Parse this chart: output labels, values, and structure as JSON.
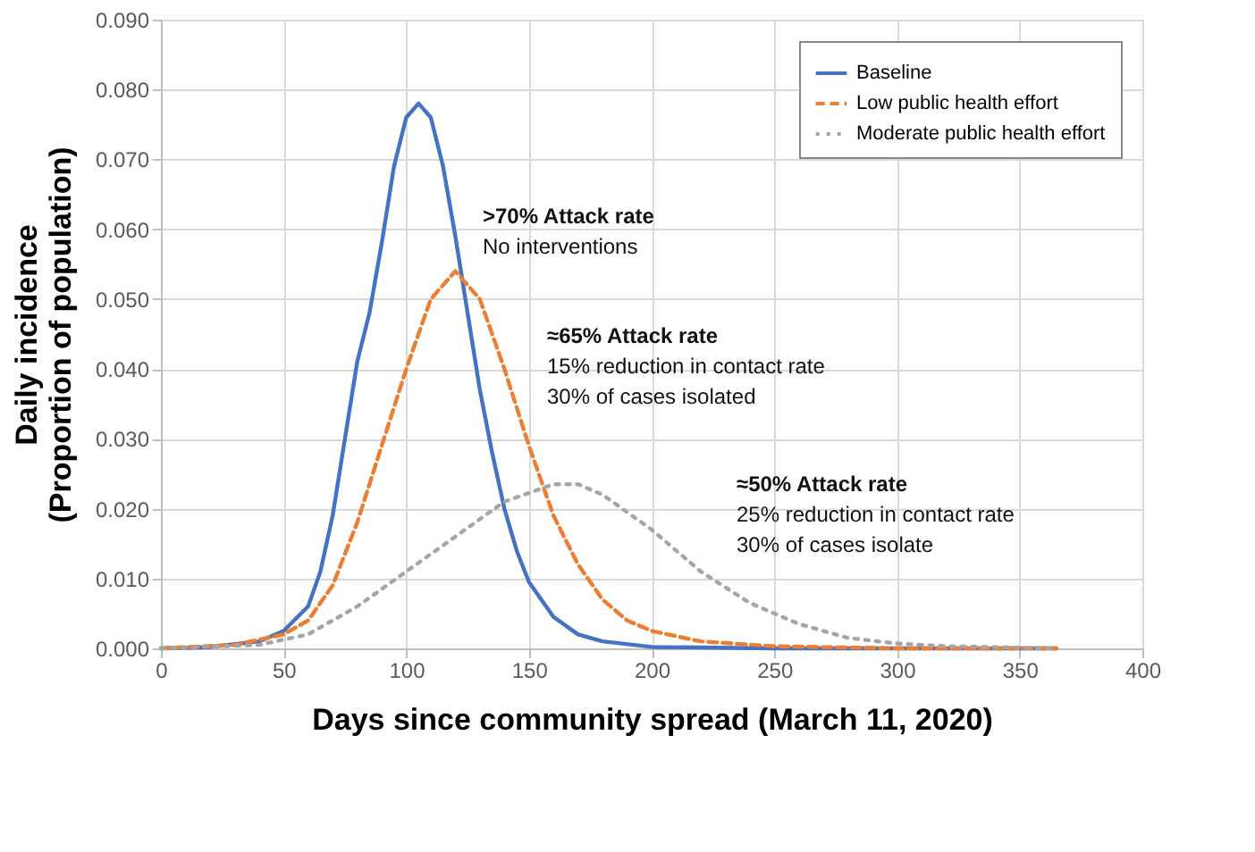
{
  "chart_data": {
    "type": "line",
    "xlabel": "Days since community spread (March 11, 2020)",
    "ylabel": "Daily incidence\n(Proportion of population)",
    "xlim": [
      0,
      400
    ],
    "xticks": [
      0,
      50,
      100,
      150,
      200,
      250,
      300,
      350,
      400
    ],
    "ylim": [
      0,
      0.09
    ],
    "yticks": [
      {
        "value": 0,
        "label": "0.000"
      },
      {
        "value": 0.01,
        "label": "0.010"
      },
      {
        "value": 0.02,
        "label": "0.020"
      },
      {
        "value": 0.03,
        "label": "0.030"
      },
      {
        "value": 0.04,
        "label": "0.040"
      },
      {
        "value": 0.05,
        "label": "0.050"
      },
      {
        "value": 0.06,
        "label": "0.060"
      },
      {
        "value": 0.07,
        "label": "0.070"
      },
      {
        "value": 0.08,
        "label": "0.080"
      },
      {
        "value": 0.09,
        "label": "0.090"
      }
    ],
    "grid": true,
    "legend": "top right",
    "series": [
      {
        "name": "Baseline",
        "color": "#4472c4",
        "line_style": "solid",
        "x": [
          0,
          20,
          40,
          50,
          60,
          65,
          70,
          75,
          80,
          85,
          90,
          95,
          100,
          105,
          110,
          115,
          120,
          125,
          130,
          135,
          140,
          145,
          150,
          160,
          170,
          180,
          200,
          250,
          365
        ],
        "values": [
          0,
          0.0002,
          0.001,
          0.0025,
          0.006,
          0.011,
          0.019,
          0.03,
          0.041,
          0.048,
          0.058,
          0.069,
          0.076,
          0.078,
          0.076,
          0.069,
          0.059,
          0.048,
          0.037,
          0.028,
          0.02,
          0.014,
          0.0095,
          0.0045,
          0.002,
          0.001,
          0.0002,
          0,
          0
        ]
      },
      {
        "name": "Low public health effort",
        "color": "#ed7d31",
        "line_style": "dashed",
        "x": [
          0,
          30,
          50,
          60,
          70,
          80,
          90,
          100,
          110,
          120,
          130,
          140,
          150,
          160,
          170,
          180,
          190,
          200,
          220,
          250,
          300,
          365
        ],
        "values": [
          0,
          0.0005,
          0.002,
          0.004,
          0.009,
          0.018,
          0.029,
          0.04,
          0.05,
          0.054,
          0.05,
          0.04,
          0.029,
          0.019,
          0.012,
          0.007,
          0.004,
          0.0025,
          0.001,
          0.0003,
          0,
          0
        ]
      },
      {
        "name": "Moderate public health effort",
        "color": "#a5a5a5",
        "line_style": "dotted",
        "x": [
          0,
          40,
          60,
          80,
          100,
          120,
          140,
          160,
          170,
          180,
          200,
          220,
          240,
          260,
          280,
          300,
          320,
          365
        ],
        "values": [
          0,
          0.0005,
          0.002,
          0.006,
          0.011,
          0.016,
          0.021,
          0.0235,
          0.0235,
          0.022,
          0.017,
          0.011,
          0.0065,
          0.0035,
          0.0015,
          0.0007,
          0.0003,
          0
        ]
      }
    ],
    "annotations": [
      ">70% Attack rate\nNo interventions",
      "≈65% Attack rate\n15% reduction in contact rate\n30% of cases isolated",
      "≈50% Attack rate\n25% reduction in contact rate\n30% of cases isolate"
    ]
  }
}
